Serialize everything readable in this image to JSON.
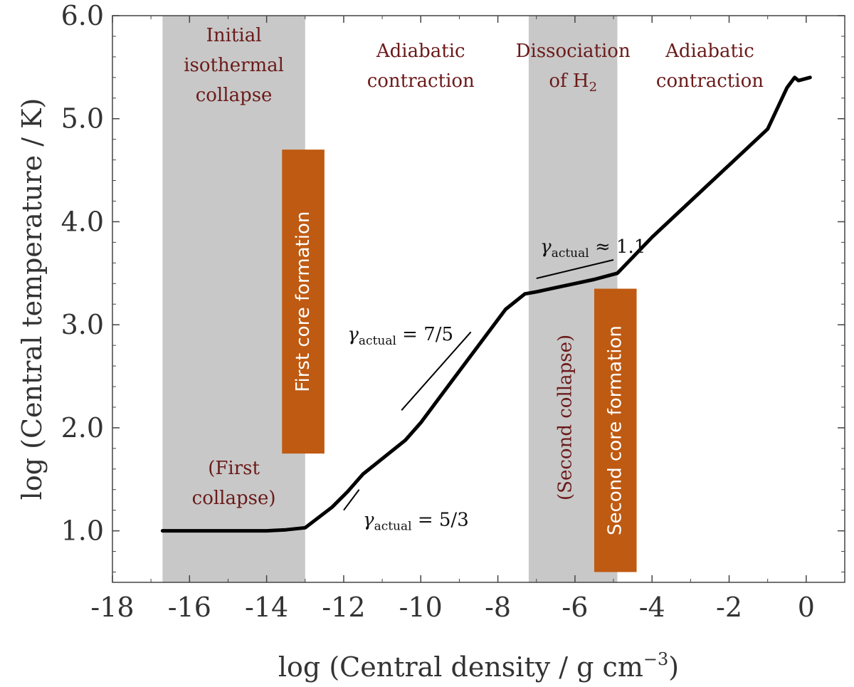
{
  "colors": {
    "shade": "#c8c8c8",
    "box": "#bf5a12",
    "curve": "#000000",
    "phase_text": "#6b1a1a"
  },
  "chart_data": {
    "type": "line",
    "xlabel": "log (Central density / g cm",
    "xlabel_exp": "−3",
    "xlabel_end": ")",
    "ylabel": "log (Central temperature / K)",
    "xlim": [
      -18,
      1
    ],
    "ylim": [
      0.5,
      6.0
    ],
    "x_ticks": [
      -18,
      -16,
      -14,
      -12,
      -10,
      -8,
      -6,
      -4,
      -2,
      0
    ],
    "x_tick_labels": [
      "-18",
      "-16",
      "-14",
      "-12",
      "-10",
      "-8",
      "-6",
      "-4",
      "-2",
      "0"
    ],
    "y_ticks": [
      1.0,
      2.0,
      3.0,
      4.0,
      5.0,
      6.0
    ],
    "y_tick_labels": [
      "1.0",
      "2.0",
      "3.0",
      "4.0",
      "5.0",
      "6.0"
    ],
    "series": [
      {
        "name": "central temperature",
        "x": [
          -16.7,
          -15.5,
          -14.5,
          -14.0,
          -13.5,
          -13.0,
          -12.3,
          -11.9,
          -11.5,
          -11.0,
          -10.4,
          -10.0,
          -9.5,
          -8.5,
          -7.8,
          -7.3,
          -7.0,
          -6.5,
          -6.0,
          -5.5,
          -4.9,
          -4.0,
          -3.0,
          -2.0,
          -1.0,
          -0.5,
          -0.3,
          -0.2,
          0.1
        ],
        "y": [
          1.0,
          1.0,
          1.0,
          1.0,
          1.01,
          1.03,
          1.23,
          1.38,
          1.55,
          1.7,
          1.88,
          2.05,
          2.3,
          2.8,
          3.15,
          3.3,
          3.32,
          3.36,
          3.4,
          3.44,
          3.5,
          3.85,
          4.2,
          4.55,
          4.9,
          5.3,
          5.4,
          5.37,
          5.4
        ]
      }
    ],
    "shaded_regions": [
      {
        "name": "initial-isothermal-collapse",
        "x_start": -16.7,
        "x_end": -13.0
      },
      {
        "name": "dissociation-h2",
        "x_start": -7.2,
        "x_end": -4.9
      }
    ],
    "phase_labels": [
      {
        "name": "initial-isothermal-collapse-label",
        "lines": [
          "Initial",
          "isothermal",
          "collapse"
        ],
        "x": -14.85,
        "y": 5.75
      },
      {
        "name": "adiabatic-contraction-label-1",
        "lines": [
          "Adiabatic",
          "contraction"
        ],
        "x": -10.0,
        "y": 5.6
      },
      {
        "name": "dissociation-h2-label",
        "lines": [
          "Dissociation",
          "of H"
        ],
        "sub": "2",
        "x": -6.05,
        "y": 5.6
      },
      {
        "name": "adiabatic-contraction-label-2",
        "lines": [
          "Adiabatic",
          "contraction"
        ],
        "x": -2.5,
        "y": 5.6
      },
      {
        "name": "first-collapse-label",
        "lines": [
          "(First",
          "collapse)"
        ],
        "x": -14.85,
        "y": 1.55
      }
    ],
    "vertical_labels": [
      {
        "name": "second-collapse-label",
        "text": "(Second collapse)",
        "x": -6.25,
        "y": 2.1
      }
    ],
    "boxes": [
      {
        "name": "first-core-formation-box",
        "label": "First core formation",
        "x_start": -13.6,
        "x_end": -12.5,
        "y_start": 1.75,
        "y_end": 4.7
      },
      {
        "name": "second-core-formation-box",
        "label": "Second core formation",
        "x_start": -5.5,
        "x_end": -4.4,
        "y_start": 0.6,
        "y_end": 3.35
      }
    ],
    "slope_guides": [
      {
        "name": "slope-guide-5-3",
        "x1": -12.0,
        "y1": 1.2,
        "x2": -11.6,
        "y2": 1.4
      },
      {
        "name": "slope-guide-7-5",
        "x1": -10.5,
        "y1": 2.17,
        "x2": -8.7,
        "y2": 2.93
      },
      {
        "name": "slope-guide-1-1",
        "x1": -7.0,
        "y1": 3.45,
        "x2": -5.0,
        "y2": 3.63
      }
    ],
    "annotations": [
      {
        "name": "gamma-5-3-annotation",
        "gamma": "γ",
        "sub": "actual",
        "rel": " = 5/3",
        "x": -11.5,
        "y": 1.05
      },
      {
        "name": "gamma-7-5-annotation",
        "gamma": "γ",
        "sub": "actual",
        "rel": " = 7/5",
        "x": -11.9,
        "y": 2.85
      },
      {
        "name": "gamma-1-1-annotation",
        "gamma": "γ",
        "sub": "actual",
        "rel": " ≈ 1.1",
        "x": -6.9,
        "y": 3.7
      }
    ]
  }
}
